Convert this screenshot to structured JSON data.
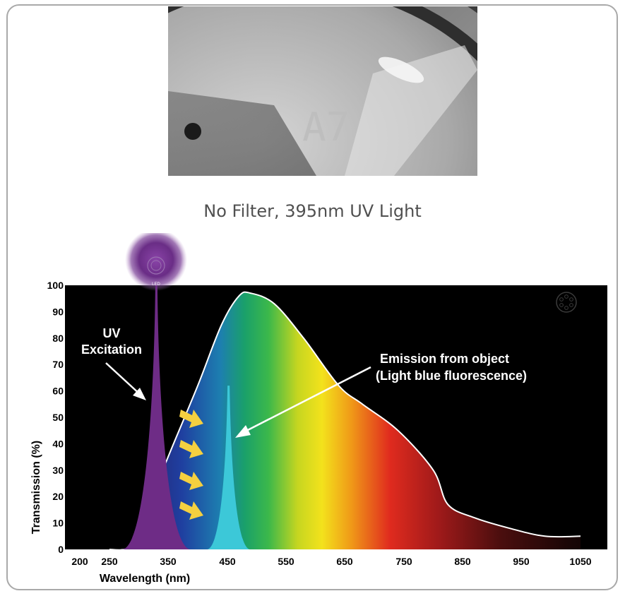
{
  "caption": "No Filter, 395nm UV Light",
  "photo": {
    "engraved_text": "A7"
  },
  "chart_data": {
    "type": "area",
    "xlabel": "Wavelength (nm)",
    "ylabel": "Transmission (%)",
    "xlim": [
      200,
      1050
    ],
    "ylim": [
      0,
      100
    ],
    "x_ticks": [
      200,
      250,
      350,
      450,
      550,
      650,
      750,
      850,
      950,
      1050
    ],
    "y_ticks": [
      0,
      10,
      20,
      30,
      40,
      50,
      60,
      70,
      80,
      90,
      100
    ],
    "series": [
      {
        "kind": "spectrum_curve",
        "points": [
          [
            250,
            0
          ],
          [
            275,
            0
          ],
          [
            300,
            3
          ],
          [
            320,
            18
          ],
          [
            350,
            35
          ],
          [
            400,
            62
          ],
          [
            440,
            85
          ],
          [
            470,
            96
          ],
          [
            490,
            97
          ],
          [
            530,
            93
          ],
          [
            580,
            80
          ],
          [
            640,
            62
          ],
          [
            680,
            55
          ],
          [
            740,
            45
          ],
          [
            800,
            30
          ],
          [
            825,
            17
          ],
          [
            870,
            12
          ],
          [
            930,
            8
          ],
          [
            990,
            5
          ],
          [
            1050,
            5
          ]
        ]
      },
      {
        "kind": "uv_excitation_peak",
        "center": 330,
        "peak": 100
      },
      {
        "kind": "emission_peak",
        "center": 452,
        "peak": 62
      }
    ],
    "annotations": [
      {
        "id": "uv",
        "lines": [
          "UV",
          "Excitation"
        ]
      },
      {
        "id": "emission",
        "lines": [
          "Emission from object",
          "(Light blue fluorescence)"
        ]
      }
    ],
    "led_label": "LED",
    "background": "#000000",
    "colors": {
      "uv_peak": "#6e2c86",
      "emission_peak": "#3cc8d8",
      "arrow_yellow": "#f5d040",
      "led_glow": "#6a2d86",
      "curve_outline": "#ffffff"
    }
  }
}
